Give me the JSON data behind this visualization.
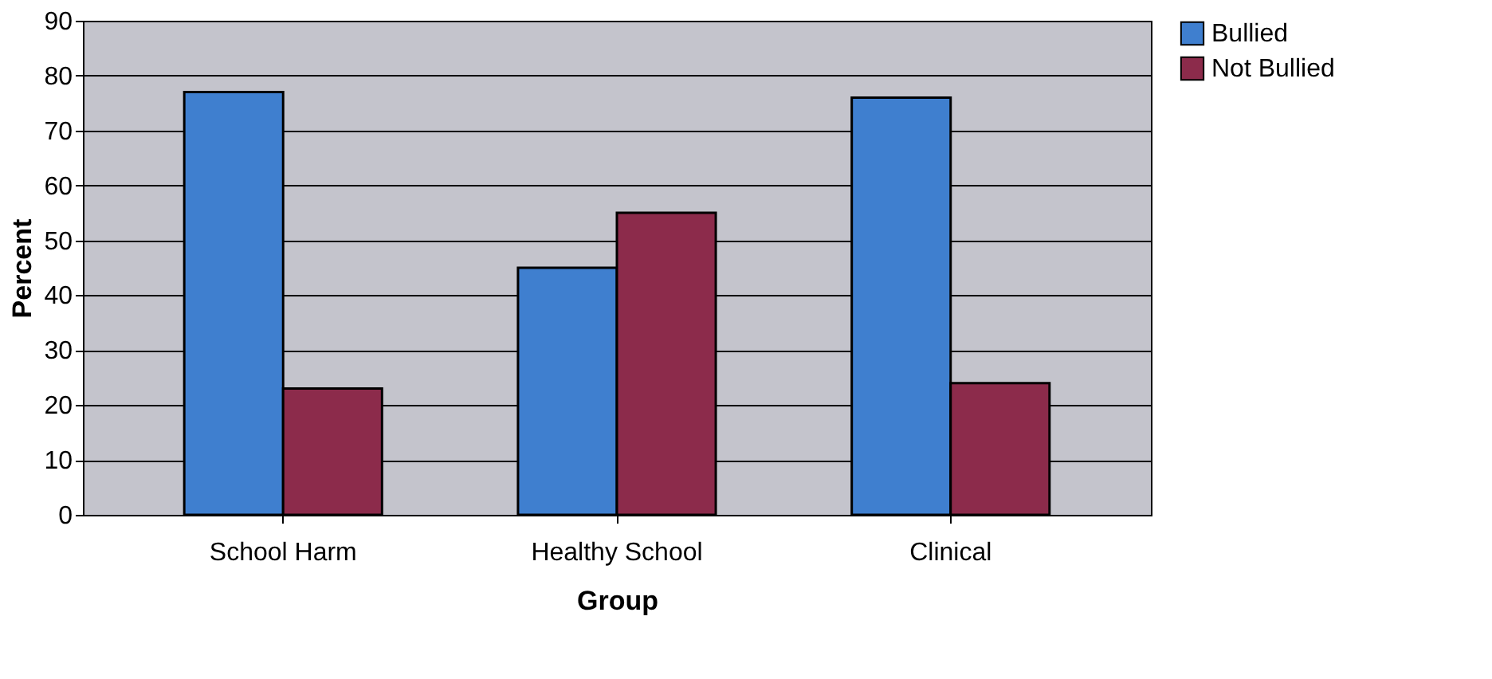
{
  "chart_data": {
    "type": "bar",
    "xlabel": "Group",
    "ylabel": "Percent",
    "categories": [
      "School Harm",
      "Healthy School",
      "Clinical"
    ],
    "series": [
      {
        "name": "Bullied",
        "color": "#3f7fcf",
        "values": [
          77,
          45,
          76
        ]
      },
      {
        "name": "Not Bullied",
        "color": "#8c2b4b",
        "values": [
          23,
          55,
          24
        ]
      }
    ],
    "ylim": [
      0,
      90
    ],
    "yticks": [
      0,
      10,
      20,
      30,
      40,
      50,
      60,
      70,
      80,
      90
    ],
    "grid": "y",
    "legend": "right"
  }
}
